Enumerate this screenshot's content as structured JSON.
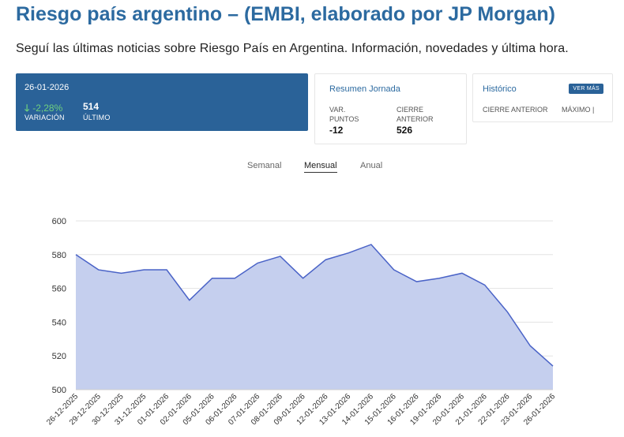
{
  "header": {
    "title": "Riesgo país argentino – (EMBI, elaborado por JP Morgan)",
    "subtitle": "Seguí las últimas noticias sobre Riesgo País en Argentina. Información, novedades y última hora."
  },
  "summary": {
    "date": "26-01-2026",
    "variation": "-2,28%",
    "variation_label": "VARIACIÓN",
    "last": "514",
    "last_label": "ÚLTIMO",
    "positive_color": "#6fd07e"
  },
  "resumen": {
    "title": "Resumen Jornada",
    "var_label_1": "VAR.",
    "var_label_2": "PUNTOS",
    "var_value": "-12",
    "close_label_1": "CIERRE",
    "close_label_2": "ANTERIOR",
    "close_value": "526"
  },
  "historico": {
    "title": "Histórico",
    "button": "VER MÁS",
    "label_1": "CIERRE ANTERIOR",
    "label_2": "MÁXIMO |"
  },
  "tabs": [
    {
      "label": "Semanal",
      "active": false
    },
    {
      "label": "Mensual",
      "active": true
    },
    {
      "label": "Anual",
      "active": false
    }
  ],
  "chart_data": {
    "type": "area",
    "title": "",
    "xlabel": "",
    "ylabel": "",
    "ylim": [
      500,
      600
    ],
    "yticks": [
      500,
      520,
      540,
      560,
      580,
      600
    ],
    "grid": true,
    "line_color": "#4a63c7",
    "fill_color": "#c5cfee",
    "categories": [
      "26-12-2025",
      "29-12-2025",
      "30-12-2025",
      "31-12-2025",
      "01-01-2026",
      "02-01-2026",
      "05-01-2026",
      "06-01-2026",
      "07-01-2026",
      "08-01-2026",
      "09-01-2026",
      "12-01-2026",
      "13-01-2026",
      "14-01-2026",
      "15-01-2026",
      "16-01-2026",
      "19-01-2026",
      "20-01-2026",
      "21-01-2026",
      "22-01-2026",
      "23-01-2026",
      "26-01-2026"
    ],
    "values": [
      580,
      571,
      569,
      571,
      571,
      553,
      566,
      566,
      575,
      579,
      566,
      577,
      581,
      586,
      571,
      564,
      566,
      569,
      562,
      546,
      526,
      514
    ]
  }
}
